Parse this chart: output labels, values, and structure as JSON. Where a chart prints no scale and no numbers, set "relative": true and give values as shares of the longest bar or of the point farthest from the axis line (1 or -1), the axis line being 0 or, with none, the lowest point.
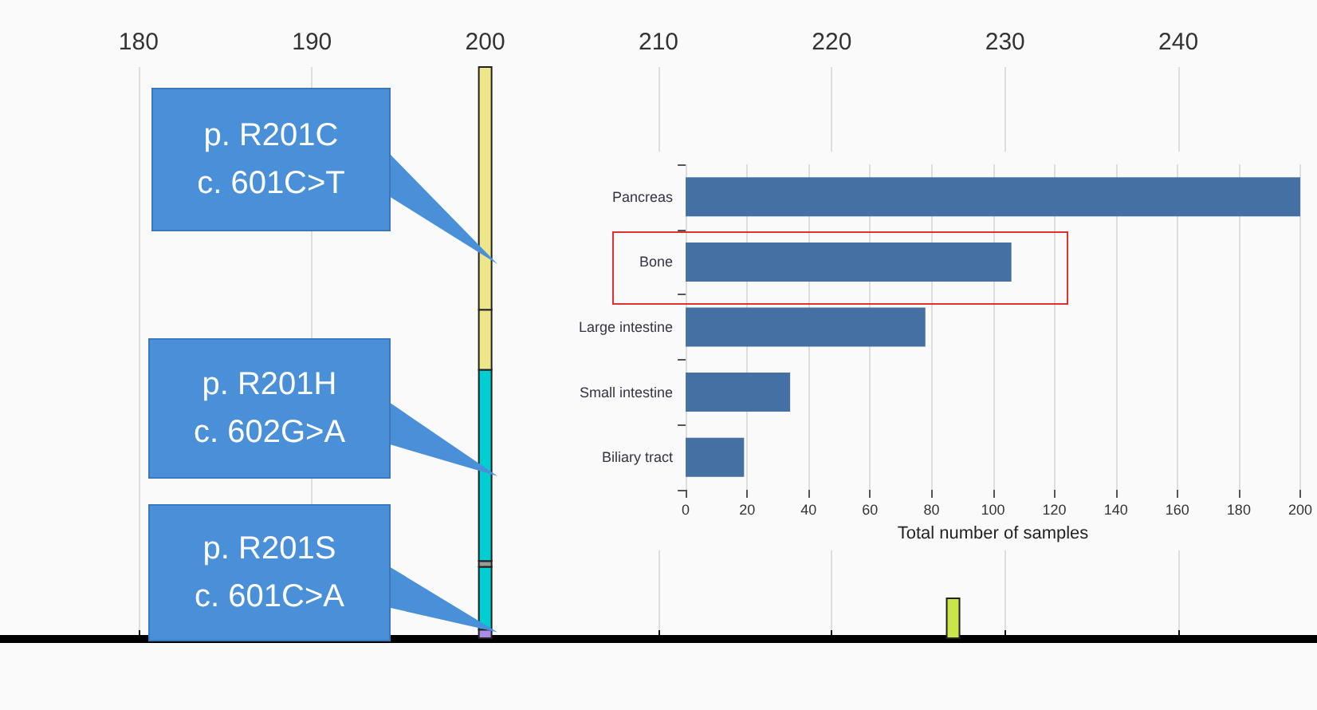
{
  "chart_data": [
    {
      "type": "bar",
      "stacked": true,
      "relative": true,
      "x": [
        200,
        227
      ],
      "xlim": [
        172,
        248
      ],
      "xticks": [
        180,
        190,
        200,
        210,
        220,
        230,
        240
      ],
      "grid": "x",
      "series": [
        {
          "color": "#a98be8",
          "values": [
            0.015,
            null
          ]
        },
        {
          "color": "#00ced1",
          "values": [
            0.11,
            null
          ]
        },
        {
          "color": "#9a9a9a",
          "values": [
            0.01,
            null
          ]
        },
        {
          "color": "#00ced1",
          "values": [
            0.335,
            null
          ]
        },
        {
          "color": "#ede68a",
          "values": [
            0.105,
            null
          ]
        },
        {
          "color": "#ede68a",
          "values": [
            0.425,
            null
          ]
        },
        {
          "color": "#c8e64a",
          "values": [
            null,
            0.07
          ]
        }
      ],
      "annotations": [
        "p. R201C\nc. 601C>T",
        "p. R201H\nc. 602G>A",
        "p. R201S\nc. 601C>A"
      ]
    },
    {
      "type": "bar",
      "orientation": "horizontal",
      "categories": [
        "Pancreas",
        "Bone",
        "Large intestine",
        "Small intestine",
        "Biliary tract"
      ],
      "values": [
        200,
        106,
        78,
        34,
        19
      ],
      "color": "#4470a3",
      "xlim": [
        0,
        200
      ],
      "xticks": [
        0,
        20,
        40,
        60,
        80,
        100,
        120,
        140,
        160,
        180,
        200
      ],
      "xlabel": "Total number of samples",
      "grid": "x"
    }
  ]
}
